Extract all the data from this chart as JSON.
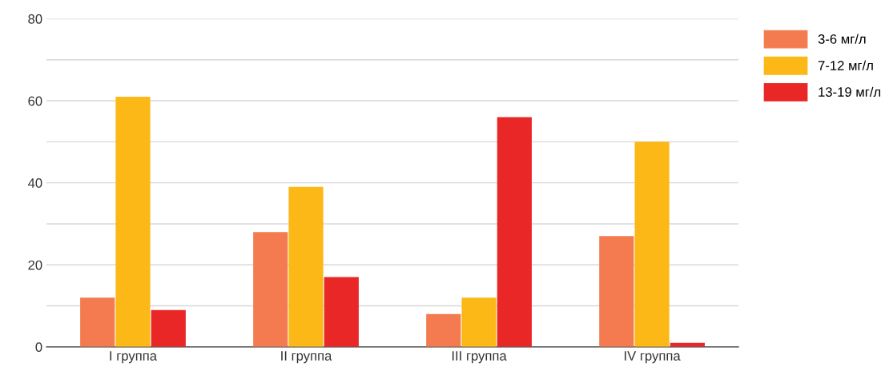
{
  "chart_data": {
    "type": "bar",
    "categories": [
      "I группа",
      "II группа",
      "III группа",
      "IV группа"
    ],
    "series": [
      {
        "name": "3-6 мг/л",
        "color": "#f47b4f",
        "values": [
          12,
          28,
          8,
          27
        ]
      },
      {
        "name": "7-12 мг/л",
        "color": "#fbb817",
        "values": [
          61,
          39,
          12,
          50
        ]
      },
      {
        "name": "13-19 мг/л",
        "color": "#e92727",
        "values": [
          9,
          17,
          56,
          1
        ]
      }
    ],
    "ylim": [
      0,
      80
    ],
    "yticks": [
      0,
      {
        "value": 10,
        "label": null
      },
      20,
      {
        "value": 30,
        "label": null
      },
      40,
      {
        "value": 50,
        "label": null
      },
      60,
      {
        "value": 70,
        "label": null
      },
      80
    ],
    "grid": "y",
    "legend": "top right"
  }
}
